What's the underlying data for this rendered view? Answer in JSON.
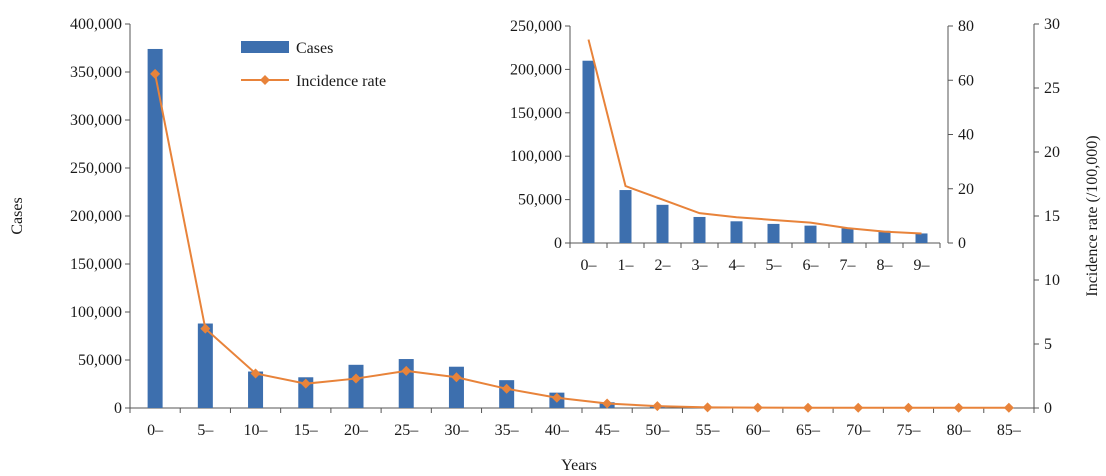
{
  "colors": {
    "bar": "#3d6fae",
    "line": "#e8833a",
    "axis": "#555555"
  },
  "chart_data": [
    {
      "type": "bar+line",
      "title": "",
      "xlabel": "Years",
      "ylabel": "Cases",
      "y2label": "Incidence rate (/100,000)",
      "categories": [
        "0–",
        "5–",
        "10–",
        "15–",
        "20–",
        "25–",
        "30–",
        "35–",
        "40–",
        "45–",
        "50–",
        "55–",
        "60–",
        "65–",
        "70–",
        "75–",
        "80–",
        "85–"
      ],
      "ylim": [
        0,
        400000
      ],
      "y_ticks": [
        "0",
        "50,000",
        "100,000",
        "150,000",
        "200,000",
        "250,000",
        "300,000",
        "350,000",
        "400,000"
      ],
      "y2lim": [
        0,
        30
      ],
      "y2_ticks": [
        "0",
        "5",
        "10",
        "15",
        "20",
        "25",
        "30"
      ],
      "legend_position": "top-center",
      "series": [
        {
          "name": "Cases",
          "kind": "bar",
          "axis": "left",
          "values": [
            374000,
            88000,
            38000,
            32000,
            45000,
            51000,
            43000,
            29000,
            16000,
            6000,
            1500,
            500,
            300,
            200,
            200,
            100,
            100,
            100
          ]
        },
        {
          "name": "Incidence rate",
          "kind": "line",
          "axis": "right",
          "values": [
            26.1,
            6.2,
            2.7,
            1.9,
            2.3,
            2.9,
            2.4,
            1.5,
            0.8,
            0.35,
            0.15,
            0.05,
            0.03,
            0.02,
            0.02,
            0.02,
            0.02,
            0.02
          ]
        }
      ]
    },
    {
      "type": "bar+line",
      "title": "",
      "categories": [
        "0–",
        "1–",
        "2–",
        "3–",
        "4–",
        "5–",
        "6–",
        "7–",
        "8–",
        "9–"
      ],
      "ylim": [
        0,
        250000
      ],
      "y_ticks": [
        "0",
        "50,000",
        "100,000",
        "150,000",
        "200,000",
        "250,000"
      ],
      "y2lim": [
        0,
        80
      ],
      "y2_ticks": [
        "0",
        "20",
        "40",
        "60",
        "80"
      ],
      "series": [
        {
          "name": "Cases",
          "kind": "bar",
          "axis": "left",
          "values": [
            210000,
            61000,
            44000,
            30000,
            25000,
            22000,
            20000,
            17000,
            14000,
            11000
          ]
        },
        {
          "name": "Incidence rate",
          "kind": "line",
          "axis": "right",
          "values": [
            75,
            21,
            16,
            11,
            9.5,
            8.5,
            7.5,
            5.5,
            4.2,
            3.5
          ]
        }
      ]
    }
  ]
}
